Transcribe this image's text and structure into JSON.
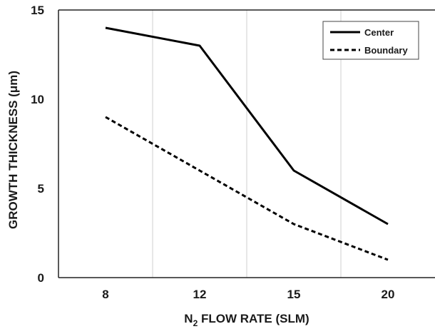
{
  "chart_data": {
    "type": "line",
    "categories": [
      "8",
      "12",
      "15",
      "20"
    ],
    "series": [
      {
        "name": "Center",
        "values": [
          14,
          13,
          6,
          3
        ],
        "style": "solid",
        "color": "#000000"
      },
      {
        "name": "Boundary",
        "values": [
          9,
          6,
          3,
          1
        ],
        "style": "dashed",
        "color": "#000000"
      }
    ],
    "xlabel_main": "N",
    "xlabel_sub": "2",
    "xlabel_rest": " FLOW RATE (SLM)",
    "ylabel": "GROWTH THICKNESS (μm)",
    "ylim": [
      0,
      15
    ],
    "yticks": [
      "0",
      "5",
      "10",
      "15"
    ],
    "grid": "vertical",
    "legend_position": "top-right"
  }
}
